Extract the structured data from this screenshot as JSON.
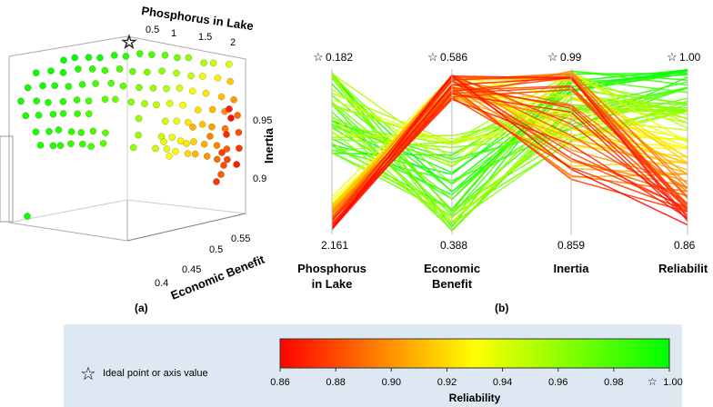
{
  "chart_data": [
    {
      "type": "scatter",
      "panel_label": "(a)",
      "axes": {
        "phosphorus": {
          "label": "Phosphorus in Lake",
          "ticks": [
            "0.5",
            "1",
            "1.5",
            "2"
          ]
        },
        "inertia": {
          "label": "Inertia",
          "ticks": [
            "0.9",
            "0.95"
          ]
        },
        "economic": {
          "label": "Economic Benefit",
          "ticks": [
            "0.4",
            "0.45",
            "0.5",
            "0.55"
          ]
        }
      },
      "points_note_values": "approximate 3D projection",
      "ideal_marker": "star-icon"
    },
    {
      "type": "parallel-coordinates",
      "panel_label": "(b)",
      "axes": [
        {
          "name": "Phosphorus\nin Lake",
          "label_lines": [
            "Phosphorus",
            "in Lake"
          ],
          "top": "0.182",
          "bottom": "2.161",
          "star": true
        },
        {
          "name": "Economic\nBenefit",
          "label_lines": [
            "Economic",
            "Benefit"
          ],
          "top": "0.586",
          "bottom": "0.388",
          "star": true
        },
        {
          "name": "Inertia",
          "label_lines": [
            "Inertia"
          ],
          "top": "0.99",
          "bottom": "0.859",
          "star": true
        },
        {
          "name": "Reliabilit",
          "label_lines": [
            "Reliabilit"
          ],
          "top": "1.00",
          "bottom": "0.86",
          "star": true
        }
      ],
      "colorbar": {
        "title": "Reliability",
        "ticks": [
          "0.86",
          "0.88",
          "0.90",
          "0.92",
          "0.94",
          "0.96",
          "0.98",
          "1.00"
        ],
        "min": 0.86,
        "max": 1.0,
        "colors": [
          "#ff0000",
          "#ffff00",
          "#00ff00"
        ]
      },
      "legend_text": "Ideal point or axis value"
    }
  ]
}
